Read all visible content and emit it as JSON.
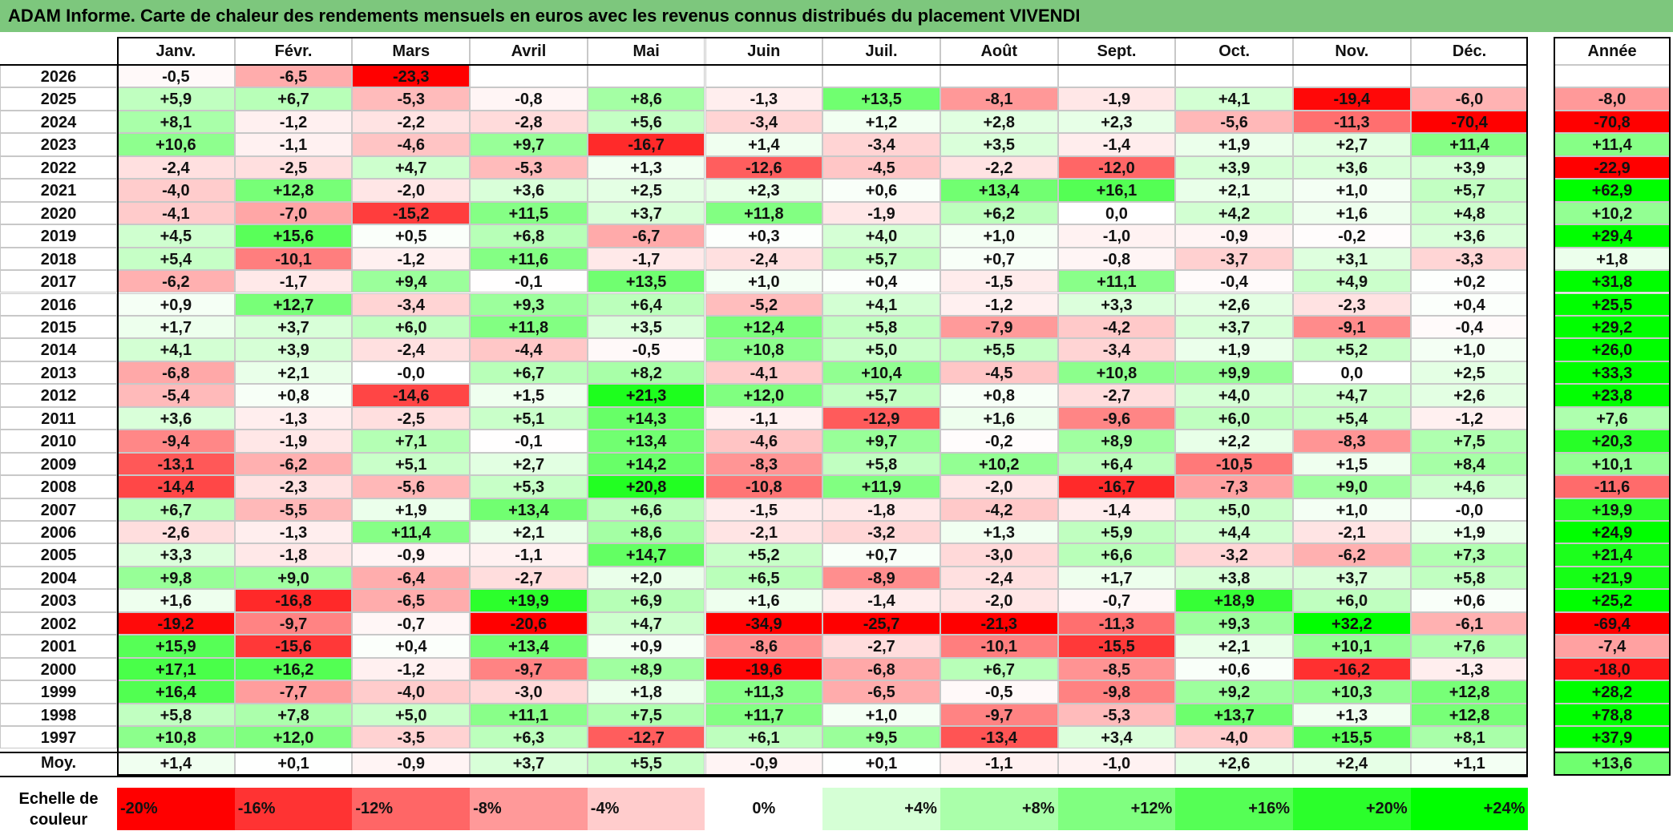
{
  "title": "ADAM Informe. Carte de chaleur des rendements mensuels en euros avec les revenus connus distribués du placement VIVENDI",
  "chart_data": {
    "type": "heatmap",
    "title": "ADAM Informe. Carte de chaleur des rendements mensuels en euros avec les revenus connus distribués du placement VIVENDI",
    "months": [
      "Janv.",
      "Févr.",
      "Mars",
      "Avril",
      "Mai",
      "Juin",
      "Juil.",
      "Août",
      "Sept.",
      "Oct.",
      "Nov.",
      "Déc."
    ],
    "year_header": "Année",
    "rows": [
      {
        "year": "2026",
        "values": [
          "-0,5",
          "-6,5",
          "-23,3",
          "",
          "",
          "",
          "",
          "",
          "",
          "",
          "",
          ""
        ],
        "annual": ""
      },
      {
        "year": "2025",
        "values": [
          "+5,9",
          "+6,7",
          "-5,3",
          "-0,8",
          "+8,6",
          "-1,3",
          "+13,5",
          "-8,1",
          "-1,9",
          "+4,1",
          "-19,4",
          "-6,0"
        ],
        "annual": "-8,0"
      },
      {
        "year": "2024",
        "values": [
          "+8,1",
          "-1,2",
          "-2,2",
          "-2,8",
          "+5,6",
          "-3,4",
          "+1,2",
          "+2,8",
          "+2,3",
          "-5,6",
          "-11,3",
          "-70,4"
        ],
        "annual": "-70,8"
      },
      {
        "year": "2023",
        "values": [
          "+10,6",
          "-1,1",
          "-4,6",
          "+9,7",
          "-16,7",
          "+1,4",
          "-3,4",
          "+3,5",
          "-1,4",
          "+1,9",
          "+2,7",
          "+11,4"
        ],
        "annual": "+11,4"
      },
      {
        "year": "2022",
        "values": [
          "-2,4",
          "-2,5",
          "+4,7",
          "-5,3",
          "+1,3",
          "-12,6",
          "-4,5",
          "-2,2",
          "-12,0",
          "+3,9",
          "+3,6",
          "+3,9"
        ],
        "annual": "-22,9"
      },
      {
        "year": "2021",
        "values": [
          "-4,0",
          "+12,8",
          "-2,0",
          "+3,6",
          "+2,5",
          "+2,3",
          "+0,6",
          "+13,4",
          "+16,1",
          "+2,1",
          "+1,0",
          "+5,7"
        ],
        "annual": "+62,9"
      },
      {
        "year": "2020",
        "values": [
          "-4,1",
          "-7,0",
          "-15,2",
          "+11,5",
          "+3,7",
          "+11,8",
          "-1,9",
          "+6,2",
          "0,0",
          "+4,2",
          "+1,6",
          "+4,8"
        ],
        "annual": "+10,2"
      },
      {
        "year": "2019",
        "values": [
          "+4,5",
          "+15,6",
          "+0,5",
          "+6,8",
          "-6,7",
          "+0,3",
          "+4,0",
          "+1,0",
          "-1,0",
          "-0,9",
          "-0,2",
          "+3,6"
        ],
        "annual": "+29,4"
      },
      {
        "year": "2018",
        "values": [
          "+5,4",
          "-10,1",
          "-1,2",
          "+11,6",
          "-1,7",
          "-2,4",
          "+5,7",
          "+0,7",
          "-0,8",
          "-3,7",
          "+3,1",
          "-3,3"
        ],
        "annual": "+1,8"
      },
      {
        "year": "2017",
        "values": [
          "-6,2",
          "-1,7",
          "+9,4",
          "-0,1",
          "+13,5",
          "+1,0",
          "+0,4",
          "-1,5",
          "+11,1",
          "-0,4",
          "+4,9",
          "+0,2"
        ],
        "annual": "+31,8"
      },
      {
        "year": "2016",
        "values": [
          "+0,9",
          "+12,7",
          "-3,4",
          "+9,3",
          "+6,4",
          "-5,2",
          "+4,1",
          "-1,2",
          "+3,3",
          "+2,6",
          "-2,3",
          "+0,4"
        ],
        "annual": "+25,5"
      },
      {
        "year": "2015",
        "values": [
          "+1,7",
          "+3,7",
          "+6,0",
          "+11,8",
          "+3,5",
          "+12,4",
          "+5,8",
          "-7,9",
          "-4,2",
          "+3,7",
          "-9,1",
          "-0,4"
        ],
        "annual": "+29,2"
      },
      {
        "year": "2014",
        "values": [
          "+4,1",
          "+3,9",
          "-2,4",
          "-4,4",
          "-0,5",
          "+10,8",
          "+5,0",
          "+5,5",
          "-3,4",
          "+1,9",
          "+5,2",
          "+1,0"
        ],
        "annual": "+26,0"
      },
      {
        "year": "2013",
        "values": [
          "-6,8",
          "+2,1",
          "-0,0",
          "+6,7",
          "+8,2",
          "-4,1",
          "+10,4",
          "-4,5",
          "+10,8",
          "+9,9",
          "0,0",
          "+2,5"
        ],
        "annual": "+33,3"
      },
      {
        "year": "2012",
        "values": [
          "-5,4",
          "+0,8",
          "-14,6",
          "+1,5",
          "+21,3",
          "+12,0",
          "+5,7",
          "+0,8",
          "-2,7",
          "+4,0",
          "+4,7",
          "+2,6"
        ],
        "annual": "+23,8"
      },
      {
        "year": "2011",
        "values": [
          "+3,6",
          "-1,3",
          "-2,5",
          "+5,1",
          "+14,3",
          "-1,1",
          "-12,9",
          "+1,6",
          "-9,6",
          "+6,0",
          "+5,4",
          "-1,2"
        ],
        "annual": "+7,6"
      },
      {
        "year": "2010",
        "values": [
          "-9,4",
          "-1,9",
          "+7,1",
          "-0,1",
          "+13,4",
          "-4,6",
          "+9,7",
          "-0,2",
          "+8,9",
          "+2,2",
          "-8,3",
          "+7,5"
        ],
        "annual": "+20,3"
      },
      {
        "year": "2009",
        "values": [
          "-13,1",
          "-6,2",
          "+5,1",
          "+2,7",
          "+14,2",
          "-8,3",
          "+5,8",
          "+10,2",
          "+6,4",
          "-10,5",
          "+1,5",
          "+8,4"
        ],
        "annual": "+10,1"
      },
      {
        "year": "2008",
        "values": [
          "-14,4",
          "-2,3",
          "-5,6",
          "+5,3",
          "+20,8",
          "-10,8",
          "+11,9",
          "-2,0",
          "-16,7",
          "-7,3",
          "+9,0",
          "+4,6"
        ],
        "annual": "-11,6"
      },
      {
        "year": "2007",
        "values": [
          "+6,7",
          "-5,5",
          "+1,9",
          "+13,4",
          "+6,6",
          "-1,5",
          "-1,8",
          "-4,2",
          "-1,4",
          "+5,0",
          "+1,0",
          "-0,0"
        ],
        "annual": "+19,9"
      },
      {
        "year": "2006",
        "values": [
          "-2,6",
          "-1,3",
          "+11,4",
          "+2,1",
          "+8,6",
          "-2,1",
          "-3,2",
          "+1,3",
          "+5,9",
          "+4,4",
          "-2,1",
          "+1,9"
        ],
        "annual": "+24,9"
      },
      {
        "year": "2005",
        "values": [
          "+3,3",
          "-1,8",
          "-0,9",
          "-1,1",
          "+14,7",
          "+5,2",
          "+0,7",
          "-3,0",
          "+6,6",
          "-3,2",
          "-6,2",
          "+7,3"
        ],
        "annual": "+21,4"
      },
      {
        "year": "2004",
        "values": [
          "+9,8",
          "+9,0",
          "-6,4",
          "-2,7",
          "+2,0",
          "+6,5",
          "-8,9",
          "-2,4",
          "+1,7",
          "+3,8",
          "+3,7",
          "+5,8"
        ],
        "annual": "+21,9"
      },
      {
        "year": "2003",
        "values": [
          "+1,6",
          "-16,8",
          "-6,5",
          "+19,9",
          "+6,9",
          "+1,6",
          "-1,4",
          "-2,0",
          "-0,7",
          "+18,9",
          "+6,0",
          "+0,6"
        ],
        "annual": "+25,2"
      },
      {
        "year": "2002",
        "values": [
          "-19,2",
          "-9,7",
          "-0,7",
          "-20,6",
          "+4,7",
          "-34,9",
          "-25,7",
          "-21,3",
          "-11,3",
          "+9,3",
          "+32,2",
          "-6,1"
        ],
        "annual": "-69,4"
      },
      {
        "year": "2001",
        "values": [
          "+15,9",
          "-15,6",
          "+0,4",
          "+13,4",
          "+0,9",
          "-8,6",
          "-2,7",
          "-10,1",
          "-15,5",
          "+2,1",
          "+10,1",
          "+7,6"
        ],
        "annual": "-7,4"
      },
      {
        "year": "2000",
        "values": [
          "+17,1",
          "+16,2",
          "-1,2",
          "-9,7",
          "+8,9",
          "-19,6",
          "-6,8",
          "+6,7",
          "-8,5",
          "+0,6",
          "-16,2",
          "-1,3"
        ],
        "annual": "-18,0"
      },
      {
        "year": "1999",
        "values": [
          "+16,4",
          "-7,7",
          "-4,0",
          "-3,0",
          "+1,8",
          "+11,3",
          "-6,5",
          "-0,5",
          "-9,8",
          "+9,2",
          "+10,3",
          "+12,8"
        ],
        "annual": "+28,2"
      },
      {
        "year": "1998",
        "values": [
          "+5,8",
          "+7,8",
          "+5,0",
          "+11,1",
          "+7,5",
          "+11,7",
          "+1,0",
          "-9,7",
          "-5,3",
          "+13,7",
          "+1,3",
          "+12,8"
        ],
        "annual": "+78,8"
      },
      {
        "year": "1997",
        "values": [
          "+10,8",
          "+12,0",
          "-3,5",
          "+6,3",
          "-12,7",
          "+6,1",
          "+9,5",
          "-13,4",
          "+3,4",
          "-4,0",
          "+15,5",
          "+8,1"
        ],
        "annual": "+37,9"
      }
    ],
    "average": {
      "label": "Moy.",
      "values": [
        "+1,4",
        "+0,1",
        "-0,9",
        "+3,7",
        "+5,5",
        "-0,9",
        "+0,1",
        "-1,1",
        "-1,0",
        "+2,6",
        "+2,4",
        "+1,1"
      ],
      "annual": "+13,6"
    },
    "color_scale": {
      "label": "Echelle de couleur",
      "stops": [
        "-20%",
        "-16%",
        "-12%",
        "-8%",
        "-4%",
        "0%",
        "+4%",
        "+8%",
        "+12%",
        "+16%",
        "+20%",
        "+24%"
      ],
      "negative_color": "#ff0000",
      "neutral_color": "#ffffff",
      "positive_color": "#00ff00"
    }
  }
}
